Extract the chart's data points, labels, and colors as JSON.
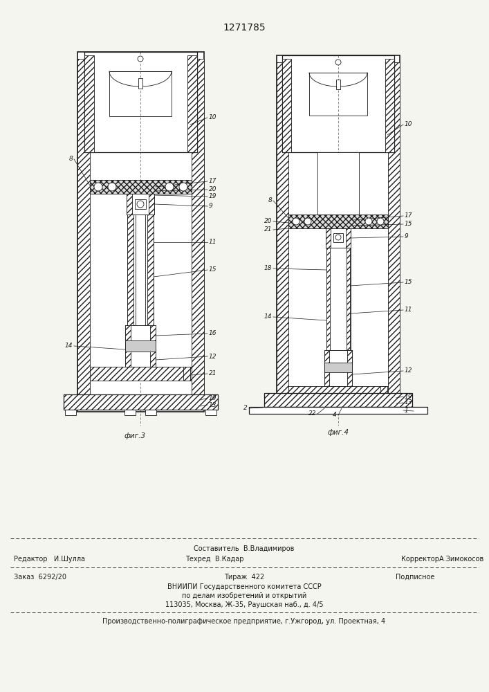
{
  "patent_number": "1271785",
  "bg": "#f5f5f0",
  "lc": "#1a1a1a",
  "fig3_label": "фиг.3",
  "fig4_label": "фиг.4",
  "footer_stavitel": "Составитель  В.Владимиров",
  "footer_red": "Редактор   И.Шулла",
  "footer_teh": "Техред  В.Кадар",
  "footer_kor": "КорректорА.Зимокосов",
  "footer_zakaz": "Заказ  6292/20",
  "footer_tiraz": "Тираж  422",
  "footer_podp": "Подписное",
  "footer_vniip1": "ВНИИПИ Государственного комитета СССР",
  "footer_vniip2": "по делам изобретений и открытий",
  "footer_addr": "113035, Москва, Ж-35, Раушская наб., д. 4/5",
  "footer_last": "Производственно-полиграфическое предприятие, г.Ужгород, ул. Проектная, 4"
}
